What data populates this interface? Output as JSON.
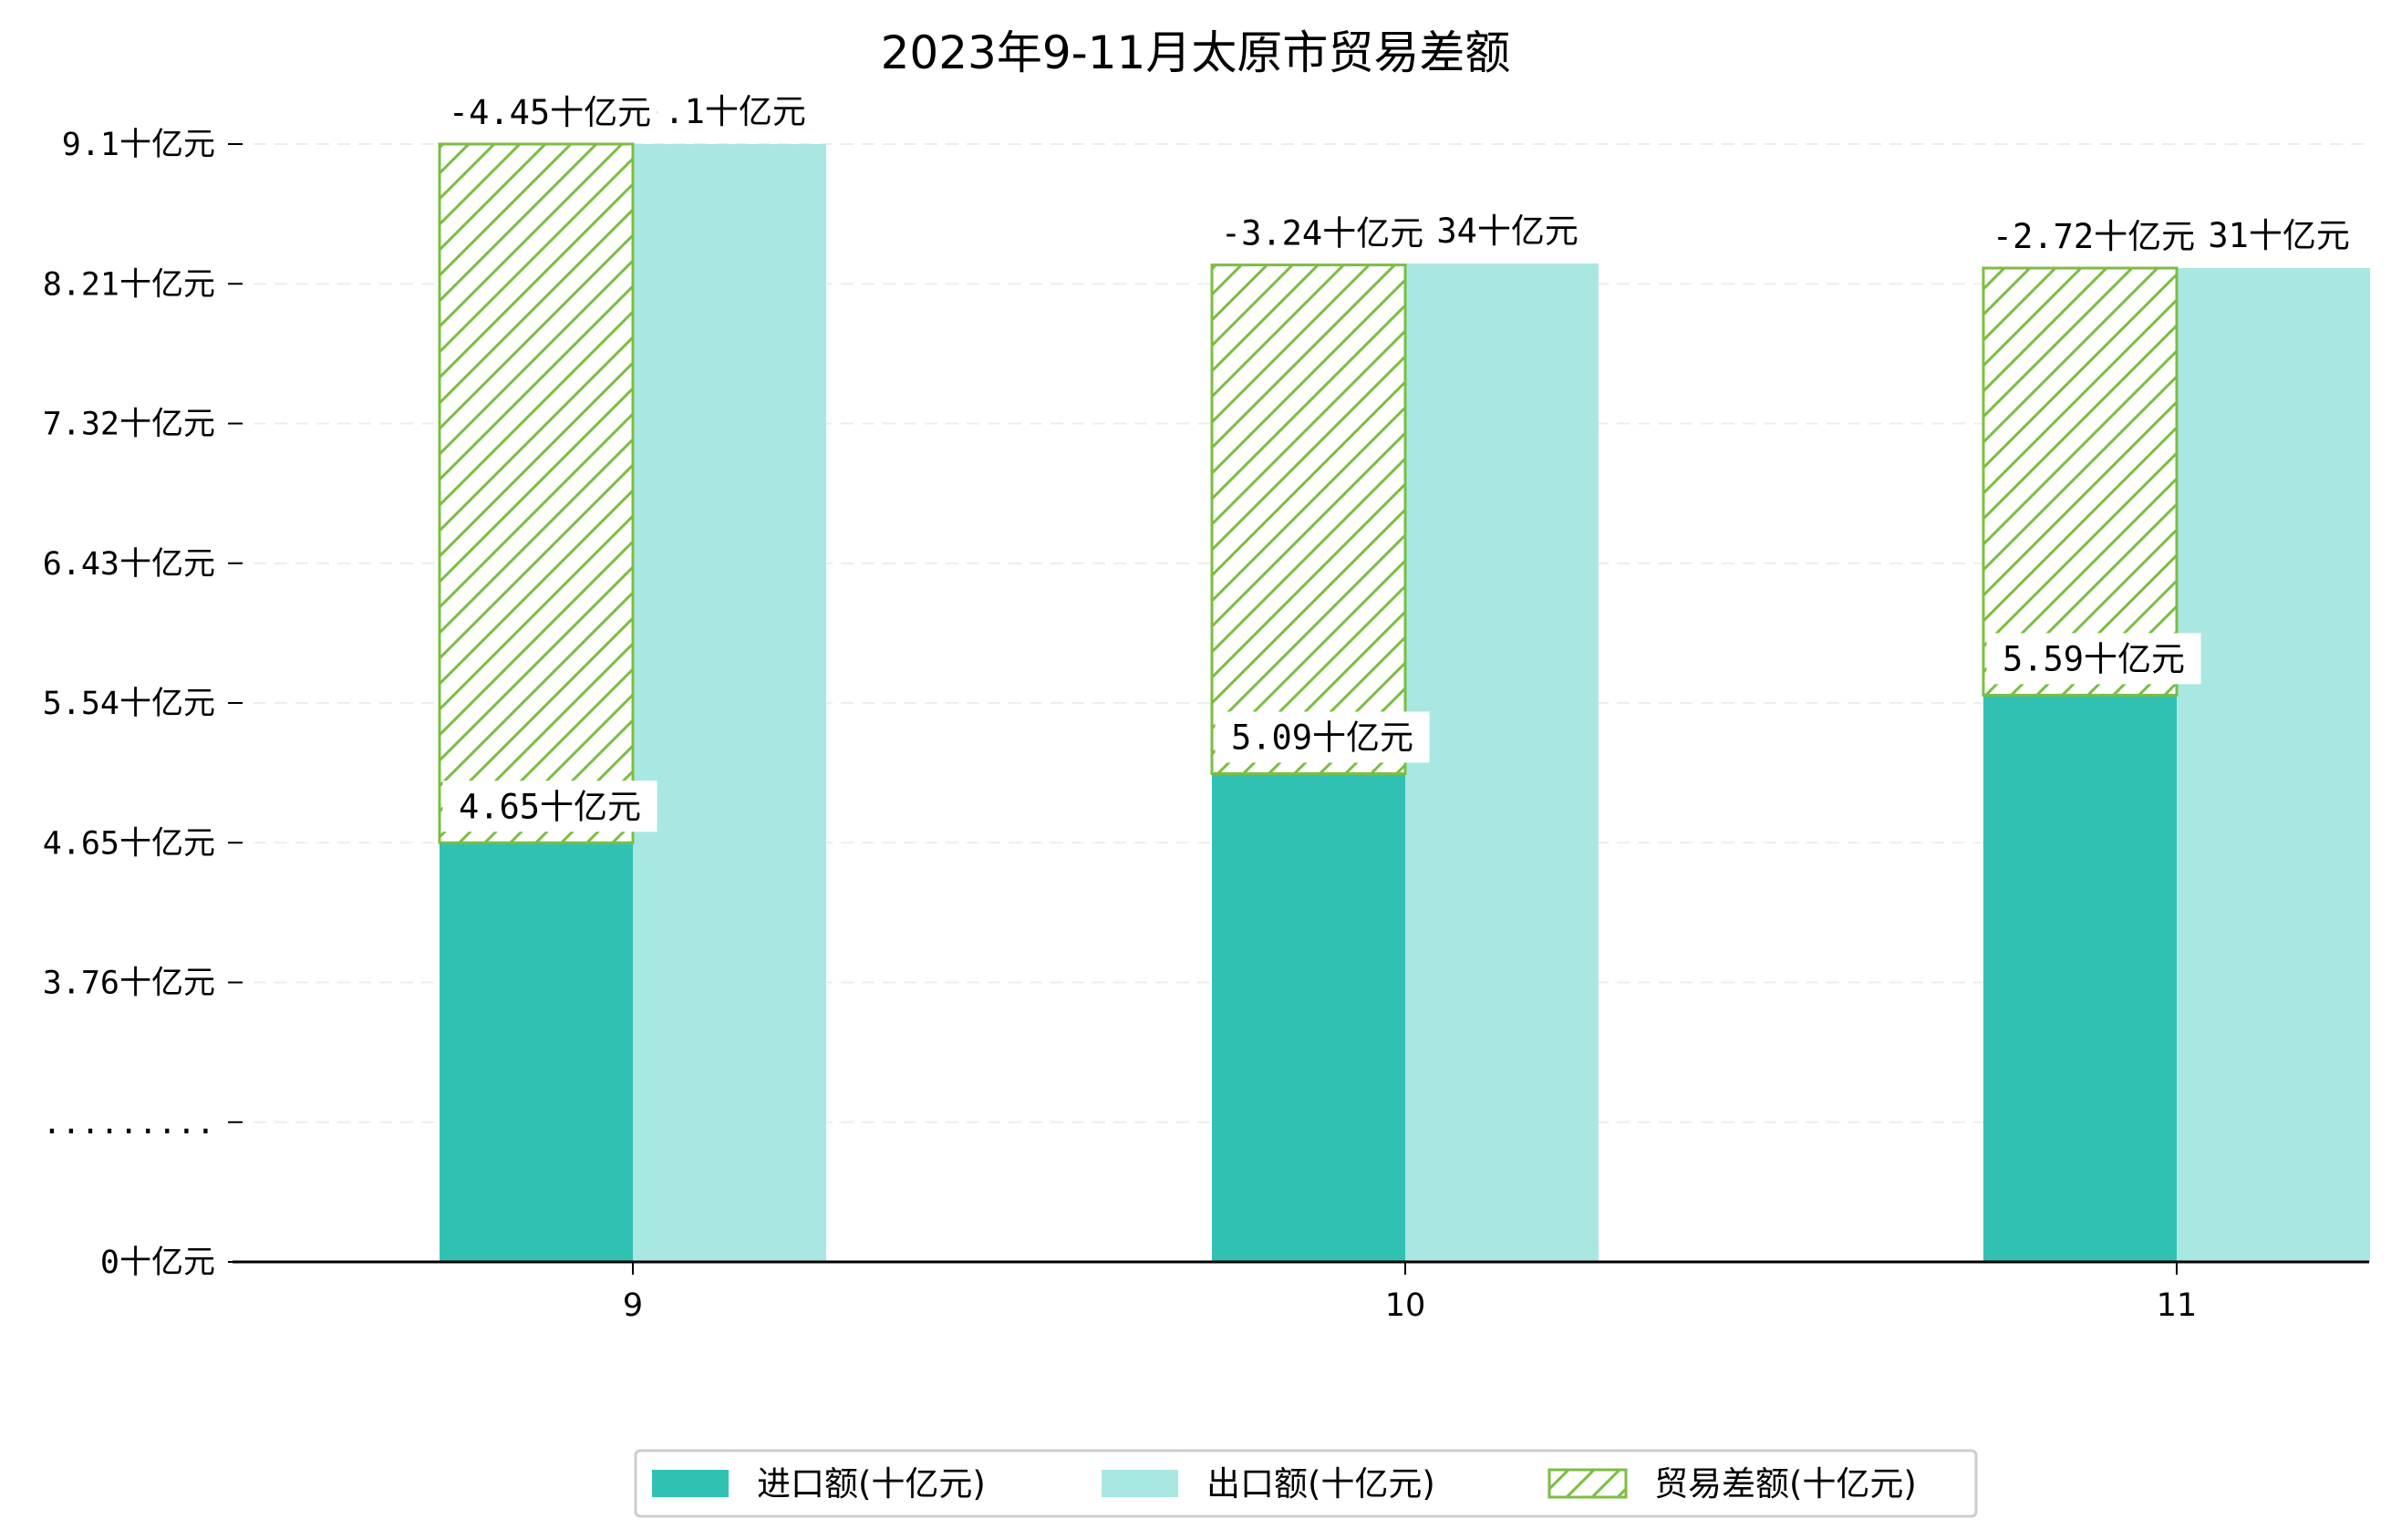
{
  "chart_data": {
    "type": "bar",
    "title": "2023年9-11月太原市贸易差额",
    "categories": [
      "9",
      "10",
      "11"
    ],
    "series": [
      {
        "name": "进口额(十亿元)",
        "values": [
          4.65,
          5.09,
          5.59
        ],
        "labels": [
          "4.65十亿元",
          "5.09十亿元",
          "5.59十亿元"
        ],
        "color": "#31c1b3"
      },
      {
        "name": "出口额(十亿元)",
        "values": [
          9.1,
          8.34,
          8.31
        ],
        "labels": [
          ").1十亿元",
          ".34十亿元",
          ".31十亿元"
        ],
        "color": "#a9e8e2"
      },
      {
        "name": "贸易差额(十亿元)",
        "values": [
          -4.45,
          -3.24,
          -2.72
        ],
        "labels": [
          "-4.45十亿元",
          "-3.24十亿元",
          "-2.72十亿元"
        ],
        "color": "#7bbe42",
        "pattern": "hatch"
      }
    ],
    "yticks": [
      {
        "value": 0,
        "label": "0十亿元"
      },
      {
        "value": 2.87,
        "label": "........."
      },
      {
        "value": 3.76,
        "label": "3.76十亿元"
      },
      {
        "value": 4.65,
        "label": "4.65十亿元"
      },
      {
        "value": 5.54,
        "label": "5.54十亿元"
      },
      {
        "value": 6.43,
        "label": "6.43十亿元"
      },
      {
        "value": 7.32,
        "label": "7.32十亿元"
      },
      {
        "value": 8.21,
        "label": "8.21十亿元"
      },
      {
        "value": 9.1,
        "label": "9.1十亿元"
      }
    ],
    "ylim": [
      0,
      9.1
    ],
    "y_axis_break": true,
    "grid": "horizontal dashed",
    "legend_position": "bottom-center"
  }
}
